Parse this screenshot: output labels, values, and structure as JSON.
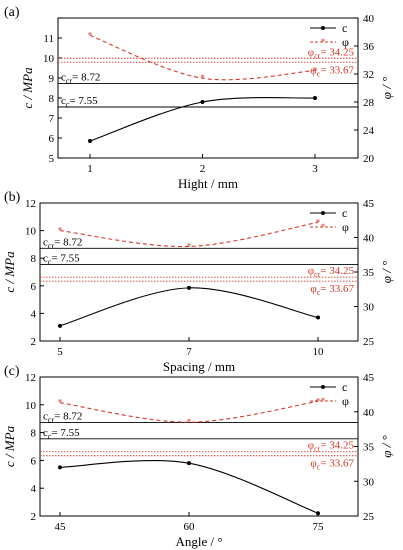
{
  "colors": {
    "c": "#000000",
    "phi": "#d23b2a"
  },
  "chart_data": [
    {
      "type": "line",
      "panel_label": "(a)",
      "xlabel": "Hight / mm",
      "ylabel": "c / MPa",
      "y2label": "φ / °",
      "x": [
        1,
        2,
        3
      ],
      "x_ticks": [
        "1",
        "2",
        "3"
      ],
      "ylim": [
        5,
        12
      ],
      "y_ticks": [
        5,
        6,
        7,
        8,
        9,
        10,
        11
      ],
      "y2lim": [
        20,
        40
      ],
      "y2_ticks": [
        20,
        24,
        28,
        32,
        36,
        40
      ],
      "series": [
        {
          "name": "c",
          "axis": "left",
          "style": "solid",
          "values": [
            5.85,
            7.8,
            8.0
          ]
        },
        {
          "name": "φ",
          "axis": "right",
          "style": "dashed",
          "values": [
            37.5,
            31.4,
            32.5
          ]
        }
      ],
      "refs_left": [
        {
          "label": "ccr= 8.72",
          "value": 8.72
        },
        {
          "label": "cc= 7.55",
          "value": 7.55
        }
      ],
      "refs_right": [
        {
          "label": "φcr= 34.25",
          "value": 34.25
        },
        {
          "label": "φc= 33.67",
          "value": 33.67
        }
      ],
      "grid": false,
      "legend": "top-right"
    },
    {
      "type": "line",
      "panel_label": "(b)",
      "xlabel": "Spacing / mm",
      "ylabel": "c / MPa",
      "y2label": "φ / °",
      "x": [
        5,
        7,
        10
      ],
      "x_ticks": [
        "5",
        "7",
        "10"
      ],
      "ylim": [
        2,
        12
      ],
      "y_ticks": [
        2,
        4,
        6,
        8,
        10,
        12
      ],
      "y2lim": [
        25,
        45
      ],
      "y2_ticks": [
        25,
        30,
        35,
        40,
        45
      ],
      "series": [
        {
          "name": "c",
          "axis": "left",
          "style": "solid",
          "values": [
            3.1,
            5.85,
            3.7
          ]
        },
        {
          "name": "φ",
          "axis": "right",
          "style": "dashed",
          "values": [
            41.0,
            38.7,
            42.2
          ]
        }
      ],
      "refs_left": [
        {
          "label": "ccr= 8.72",
          "value": 8.72
        },
        {
          "label": "cc= 7.55",
          "value": 7.55
        }
      ],
      "refs_right": [
        {
          "label": "φcr= 34.25",
          "value": 34.25
        },
        {
          "label": "φc= 33.67",
          "value": 33.67
        }
      ],
      "grid": false,
      "legend": "top-right"
    },
    {
      "type": "line",
      "panel_label": "(c)",
      "xlabel": "Angle / °",
      "ylabel": "c / MPa",
      "y2label": "φ / °",
      "x": [
        45,
        60,
        75
      ],
      "x_ticks": [
        "45",
        "60",
        "75"
      ],
      "ylim": [
        2,
        12
      ],
      "y_ticks": [
        2,
        4,
        6,
        8,
        10,
        12
      ],
      "y2lim": [
        25,
        45
      ],
      "y2_ticks": [
        25,
        30,
        35,
        40,
        45
      ],
      "series": [
        {
          "name": "c",
          "axis": "left",
          "style": "solid",
          "values": [
            5.5,
            5.8,
            2.2
          ]
        },
        {
          "name": "φ",
          "axis": "right",
          "style": "dashed",
          "values": [
            41.3,
            38.5,
            41.5
          ]
        }
      ],
      "refs_left": [
        {
          "label": "ccr= 8.72",
          "value": 8.72
        },
        {
          "label": "cc= 7.55",
          "value": 7.55
        }
      ],
      "refs_right": [
        {
          "label": "φcr= 34.25",
          "value": 34.25
        },
        {
          "label": "φc= 33.67",
          "value": 33.67
        }
      ],
      "grid": false,
      "legend": "top-right"
    }
  ]
}
